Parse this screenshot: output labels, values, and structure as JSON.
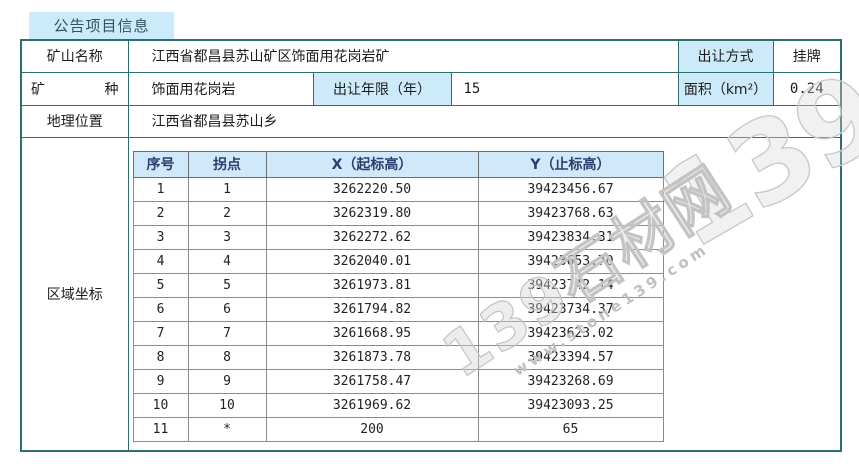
{
  "tab": {
    "label": "公告项目信息"
  },
  "table": {
    "mine_name": {
      "label": "矿山名称",
      "value": "江西省都昌县苏山矿区饰面用花岗岩矿"
    },
    "transfer_method": {
      "label": "出让方式",
      "value": "挂牌"
    },
    "mineral": {
      "label": "矿种",
      "value": "饰面用花岗岩"
    },
    "transfer_years": {
      "label": "出让年限（年）",
      "value": "15"
    },
    "area": {
      "label": "面积（km²）",
      "value": "0.24"
    },
    "location": {
      "label": "地理位置",
      "value": "江西省都昌县苏山乡"
    },
    "coordinates": {
      "label": "区域坐标",
      "headers": [
        "序号",
        "拐点",
        "X（起标高）",
        "Y（止标高）"
      ],
      "rows": [
        [
          "1",
          "1",
          "3262220.50",
          "39423456.67"
        ],
        [
          "2",
          "2",
          "3262319.80",
          "39423768.63"
        ],
        [
          "3",
          "3",
          "3262272.62",
          "39423834.31"
        ],
        [
          "4",
          "4",
          "3262040.01",
          "39423653.70"
        ],
        [
          "5",
          "5",
          "3261973.81",
          "39423742.14"
        ],
        [
          "6",
          "6",
          "3261794.82",
          "39423734.37"
        ],
        [
          "7",
          "7",
          "3261668.95",
          "39423623.02"
        ],
        [
          "8",
          "8",
          "3261873.78",
          "39423394.57"
        ],
        [
          "9",
          "9",
          "3261758.47",
          "39423268.69"
        ],
        [
          "10",
          "10",
          "3261969.62",
          "39423093.25"
        ],
        [
          "11",
          "*",
          "200",
          "65"
        ]
      ]
    }
  },
  "watermark": {
    "brand": "139石材网",
    "url": "www.stone139.com",
    "big": "139"
  },
  "colors": {
    "accent_blue": "#cdeafa",
    "border_teal": "#2d6f6f",
    "inner_header_text": "#2c3e6e",
    "watermark_gray": "#c3c3c3"
  }
}
